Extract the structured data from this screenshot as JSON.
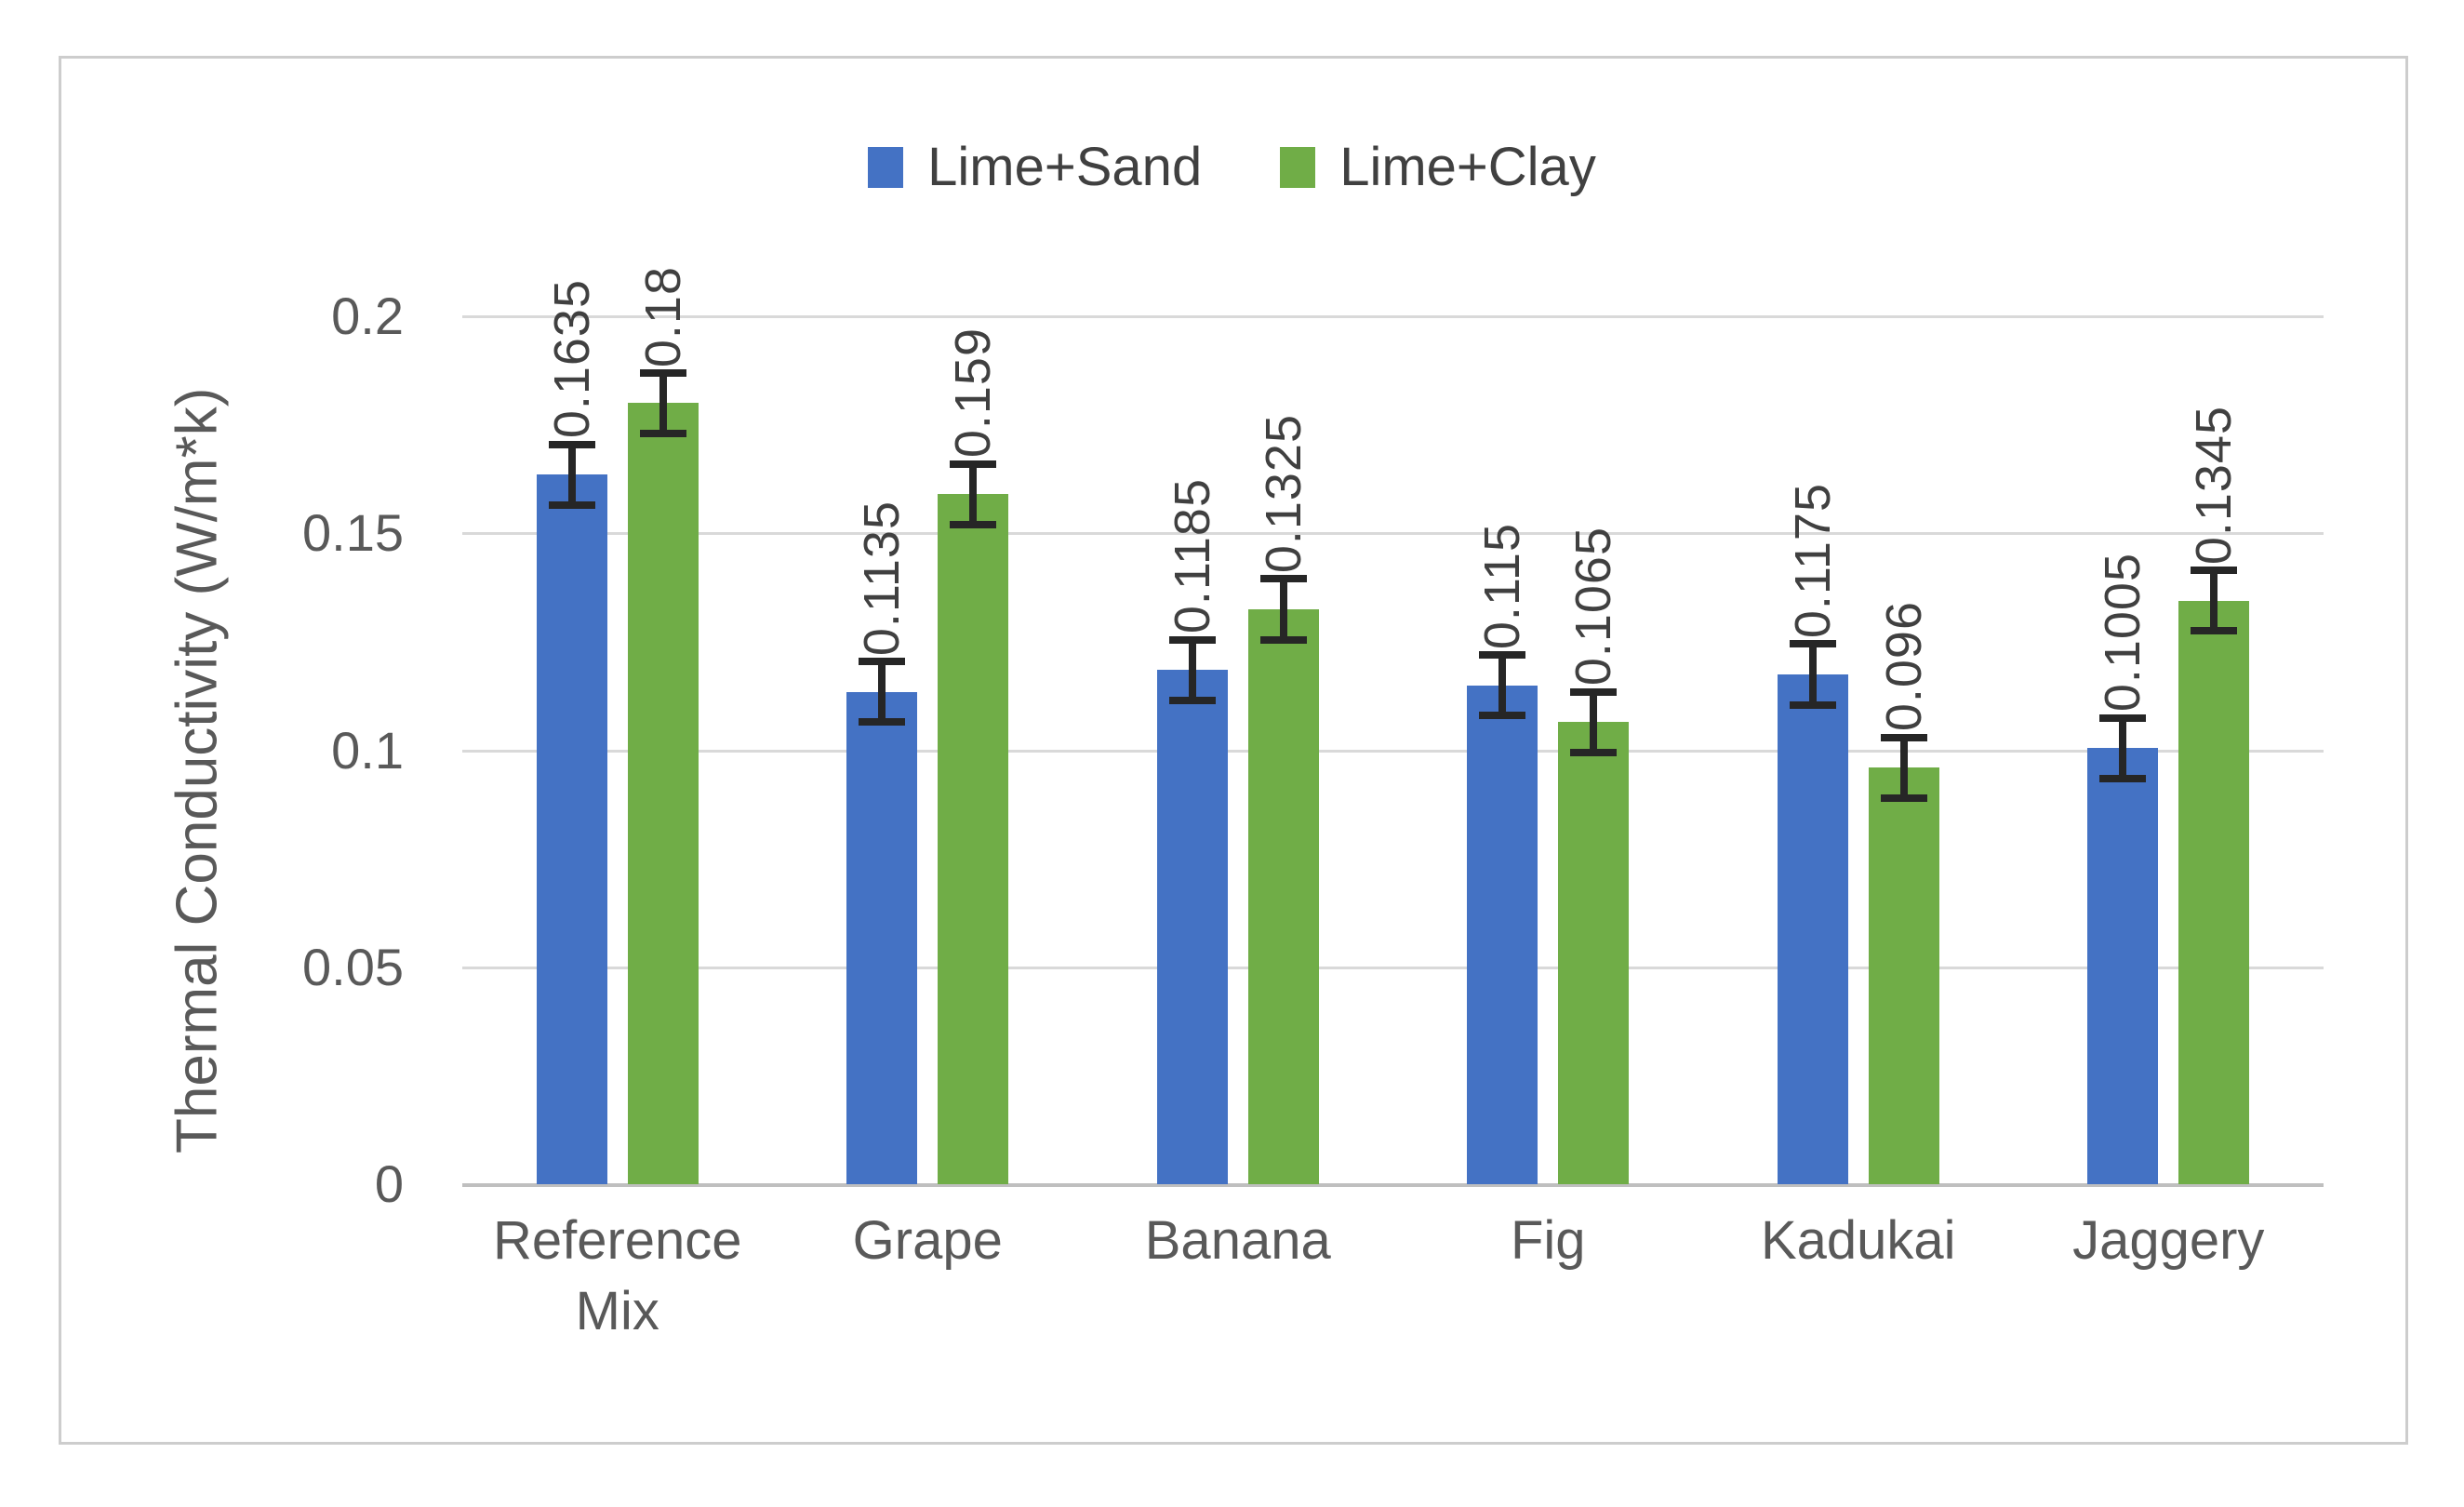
{
  "chart_data": {
    "type": "bar",
    "title": "",
    "ylabel": "Thermal Conductivity (W/m*k)",
    "xlabel": "",
    "categories": [
      "Reference Mix",
      "Grape",
      "Banana",
      "Fig",
      "Kadukai",
      "Jaggery"
    ],
    "series": [
      {
        "name": "Lime+Sand",
        "color": "#4472C4",
        "values": [
          0.1635,
          0.1135,
          0.1185,
          0.115,
          0.1175,
          0.1005
        ],
        "labels": [
          "0.1635",
          "0.1135",
          "0.1185",
          "0.115",
          "0.1175",
          "0.1005"
        ]
      },
      {
        "name": "Lime+Clay",
        "color": "#70AD47",
        "values": [
          0.18,
          0.159,
          0.1325,
          0.1065,
          0.096,
          0.1345
        ],
        "labels": [
          "0.18",
          "0.159",
          "0.1325",
          "0.1065",
          "0.096",
          "0.1345"
        ]
      }
    ],
    "error_bar_plus_minus": 0.007,
    "y_ticks": [
      {
        "value": 0,
        "label": "0"
      },
      {
        "value": 0.05,
        "label": "0.05"
      },
      {
        "value": 0.1,
        "label": "0.1"
      },
      {
        "value": 0.15,
        "label": "0.15"
      },
      {
        "value": 0.2,
        "label": "0.2"
      }
    ],
    "ylim": [
      0,
      0.22
    ],
    "grid": true,
    "legend_position": "top",
    "data_label_rotation": "vertical",
    "colors": {
      "gridline": "#d9d9d9",
      "axis_line": "#bfbfbf",
      "axis_text": "#595959",
      "data_label_text": "#404040",
      "error_bar": "#262626",
      "chart_border": "#cdcdcd"
    }
  }
}
